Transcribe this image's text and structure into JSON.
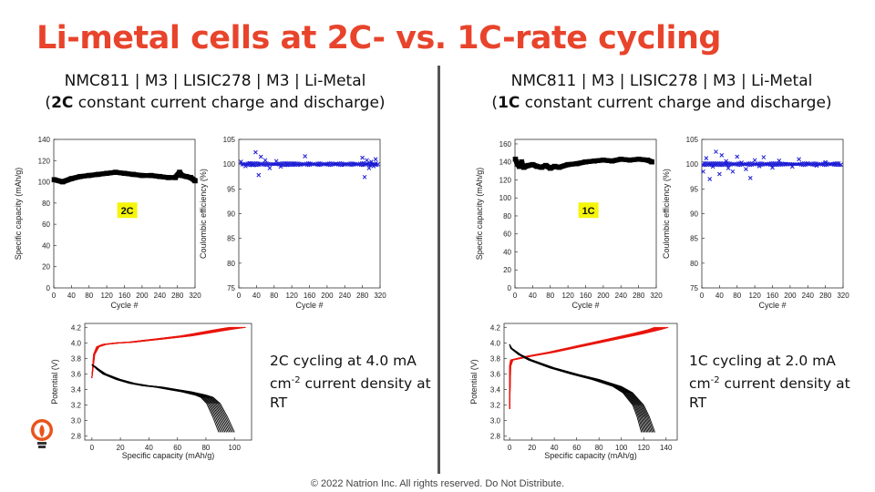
{
  "slide": {
    "title": "Li-metal cells at 2C- vs. 1C-rate cycling",
    "footer": "© 2022 Natrion Inc. All rights reserved. Do Not Distribute."
  },
  "left": {
    "cell_line1": "NMC811 | M3 | LISIC278 | M3 | Li-Metal",
    "cell_line2_open": "(",
    "cell_line2_rate": "2C",
    "cell_line2_rest": " constant current charge and discharge)",
    "desc_line1": "2C cycling at 4.0 mA",
    "desc_line2_pre": "cm",
    "desc_line2_sup": "-2",
    "desc_line2_post": " current density at",
    "desc_line3": "RT"
  },
  "right": {
    "cell_line1": "NMC811 | M3 | LISIC278 | M3 | Li-Metal",
    "cell_line2_open": "(",
    "cell_line2_rate": "1C",
    "cell_line2_rest": " constant current charge and discharge)",
    "desc_line1": "1C cycling at 2.0 mA",
    "desc_line2_pre": "cm",
    "desc_line2_sup": "-2",
    "desc_line2_post": " current density at",
    "desc_line3": "RT"
  },
  "chart_data": [
    {
      "id": "cap2c",
      "type": "scatter",
      "xlabel": "Cycle #",
      "ylabel": "Specific capacity (mAh/g)",
      "xlim": [
        0,
        320
      ],
      "ylim": [
        0,
        140
      ],
      "xticks": [
        0,
        40,
        80,
        120,
        160,
        200,
        240,
        280,
        320
      ],
      "yticks": [
        0,
        20,
        40,
        60,
        80,
        100,
        120,
        140
      ],
      "annotation": "2C",
      "color": "#000000",
      "x": [
        1,
        20,
        40,
        60,
        80,
        100,
        120,
        140,
        160,
        180,
        200,
        220,
        240,
        260,
        275,
        285,
        290,
        300,
        310,
        320
      ],
      "y": [
        102,
        100,
        103,
        105,
        106,
        107,
        108,
        109,
        108,
        107,
        106,
        106,
        105,
        104,
        104,
        109,
        106,
        105,
        104,
        101
      ]
    },
    {
      "id": "ce2c",
      "type": "scatter",
      "xlabel": "Cycle #",
      "ylabel": "Coulombic efficiency (%)",
      "xlim": [
        0,
        320
      ],
      "ylim": [
        75,
        105
      ],
      "xticks": [
        0,
        40,
        80,
        120,
        160,
        200,
        240,
        280,
        320
      ],
      "yticks": [
        75,
        80,
        85,
        90,
        95,
        100,
        105
      ],
      "color": "#1a1ad4",
      "x": [
        5,
        15,
        25,
        32,
        38,
        45,
        50,
        60,
        70,
        85,
        95,
        110,
        125,
        140,
        150,
        160,
        180,
        200,
        220,
        240,
        260,
        280,
        285,
        290,
        295,
        300,
        305,
        310,
        315
      ],
      "y": [
        100.5,
        99.6,
        100.2,
        99.8,
        102.4,
        97.8,
        101.5,
        100.8,
        99.2,
        100.6,
        99.5,
        100.0,
        100.1,
        99.9,
        101.6,
        100.0,
        100.0,
        100.0,
        100.1,
        99.9,
        100.0,
        101.3,
        97.4,
        100.8,
        99.2,
        100.5,
        99.6,
        101.0,
        100.0
      ]
    },
    {
      "id": "cap1c",
      "type": "scatter",
      "xlabel": "Cycle #",
      "ylabel": "Specific capacity (mAh/g)",
      "xlim": [
        0,
        320
      ],
      "ylim": [
        0,
        165
      ],
      "xticks": [
        0,
        40,
        80,
        120,
        160,
        200,
        240,
        280,
        320
      ],
      "yticks": [
        0,
        20,
        40,
        60,
        80,
        100,
        120,
        140,
        160
      ],
      "annotation": "1C",
      "color": "#000000",
      "x": [
        1,
        5,
        10,
        15,
        20,
        30,
        40,
        50,
        60,
        70,
        80,
        90,
        100,
        120,
        140,
        160,
        180,
        200,
        220,
        240,
        260,
        280,
        300,
        310
      ],
      "y": [
        143,
        138,
        135,
        140,
        134,
        136,
        137,
        135,
        134,
        136,
        133,
        135,
        134,
        137,
        138,
        140,
        141,
        142,
        141,
        143,
        142,
        143,
        142,
        140
      ]
    },
    {
      "id": "ce1c",
      "type": "scatter",
      "xlabel": "Cycle #",
      "ylabel": "Coulombic efficiency (%)",
      "xlim": [
        0,
        320
      ],
      "ylim": [
        75,
        105
      ],
      "xticks": [
        0,
        40,
        80,
        120,
        160,
        200,
        240,
        280,
        320
      ],
      "yticks": [
        75,
        80,
        85,
        90,
        95,
        100,
        105
      ],
      "color": "#1a1ad4",
      "x": [
        3,
        10,
        18,
        25,
        32,
        40,
        45,
        55,
        60,
        70,
        80,
        90,
        100,
        110,
        120,
        130,
        140,
        150,
        160,
        175,
        190,
        205,
        220,
        240,
        260,
        280,
        300,
        315
      ],
      "y": [
        98.5,
        101.2,
        97.0,
        99.5,
        102.5,
        98.0,
        101.8,
        100.6,
        99.2,
        98.5,
        101.5,
        100.3,
        99.0,
        97.2,
        100.8,
        99.6,
        101.4,
        100.0,
        99.3,
        100.7,
        100.0,
        99.5,
        101.0,
        100.2,
        99.7,
        100.4,
        100.0,
        99.9
      ]
    },
    {
      "id": "v2c",
      "type": "line",
      "xlabel": "Specific capacity (mAh/g)",
      "ylabel": "Potential (V)",
      "xlim": [
        -5,
        112
      ],
      "ylim": [
        2.75,
        4.25
      ],
      "xticks": [
        0,
        20,
        40,
        60,
        80,
        100
      ],
      "yticks": [
        2.8,
        3.0,
        3.2,
        3.4,
        3.6,
        3.8,
        4.0,
        4.2
      ],
      "charge_color": "#e8160c",
      "discharge_color": "#000000",
      "charge_x": [
        0,
        2,
        5,
        10,
        20,
        30,
        40,
        50,
        60,
        70,
        80,
        90,
        100,
        108
      ],
      "charge_y": [
        3.55,
        3.85,
        3.95,
        3.98,
        4.0,
        4.01,
        4.03,
        4.05,
        4.07,
        4.09,
        4.12,
        4.15,
        4.18,
        4.2
      ],
      "discharge_x": [
        0,
        2,
        5,
        10,
        20,
        30,
        40,
        50,
        60,
        70,
        80,
        85,
        90,
        95,
        100
      ],
      "discharge_y": [
        3.72,
        3.7,
        3.66,
        3.6,
        3.53,
        3.48,
        3.45,
        3.43,
        3.4,
        3.37,
        3.33,
        3.3,
        3.22,
        3.05,
        2.85
      ],
      "spread_max": 11
    },
    {
      "id": "v1c",
      "type": "line",
      "xlabel": "Specific capacity (mAh/g)",
      "ylabel": "Potential (V)",
      "xlim": [
        -5,
        150
      ],
      "ylim": [
        2.75,
        4.25
      ],
      "xticks": [
        0,
        20,
        40,
        60,
        80,
        100,
        120,
        140
      ],
      "yticks": [
        2.8,
        3.0,
        3.2,
        3.4,
        3.6,
        3.8,
        4.0,
        4.2
      ],
      "charge_color": "#e8160c",
      "discharge_color": "#000000",
      "charge_x": [
        0,
        1,
        3,
        10,
        20,
        40,
        60,
        80,
        100,
        120,
        135,
        142
      ],
      "charge_y": [
        3.15,
        3.7,
        3.78,
        3.8,
        3.83,
        3.88,
        3.94,
        4.0,
        4.06,
        4.12,
        4.17,
        4.2
      ],
      "discharge_x": [
        0,
        2,
        10,
        20,
        40,
        60,
        80,
        100,
        110,
        120,
        125,
        130
      ],
      "discharge_y": [
        3.98,
        3.93,
        3.85,
        3.78,
        3.68,
        3.6,
        3.53,
        3.44,
        3.36,
        3.2,
        3.05,
        2.85
      ],
      "spread_max": 12
    }
  ]
}
